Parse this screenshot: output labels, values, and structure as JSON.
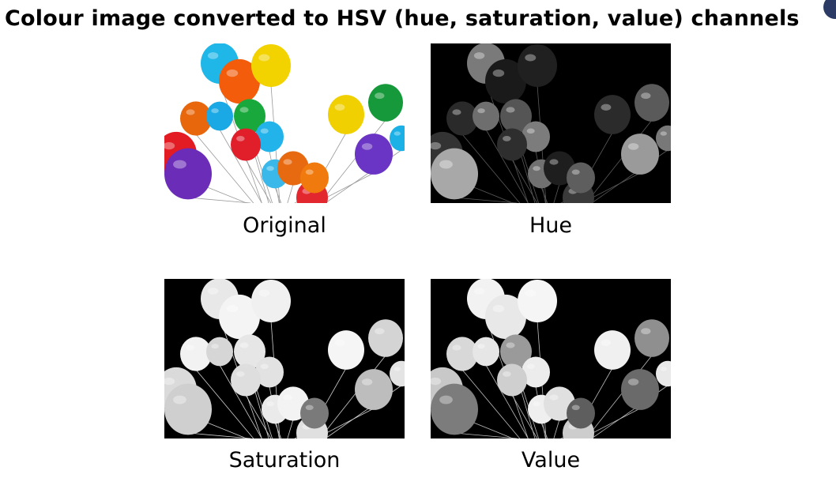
{
  "title": "Colour image converted to HSV (hue, saturation, value) channels",
  "panels": [
    {
      "key": "original",
      "caption": "Original",
      "background": "#ffffff",
      "string_color": "#9a9a9a"
    },
    {
      "key": "hue",
      "caption": "Hue",
      "background": "#000000",
      "string_color": "#5a5a5a"
    },
    {
      "key": "saturation",
      "caption": "Saturation",
      "background": "#000000",
      "string_color": "#cfcfcf"
    },
    {
      "key": "value",
      "caption": "Value",
      "background": "#000000",
      "string_color": "#bdbdbd"
    }
  ],
  "balloon_colors": {
    "original": [
      "#1fb6e8",
      "#f25c0a",
      "#f2d300",
      "#e31b23",
      "#e8660c",
      "#1aa9e5",
      "#18a83b",
      "#21b3ea",
      "#e01f2b",
      "#6b2db8",
      "#3ab8ea",
      "#f0d000",
      "#16993a",
      "#6a34c4",
      "#1bb0e6",
      "#e3272f",
      "#e86a10",
      "#f07a0d"
    ],
    "hue": [
      "#7a7a7a",
      "#1a1a1a",
      "#202020",
      "#333333",
      "#2a2a2a",
      "#6e6e6e",
      "#555555",
      "#7c7c7c",
      "#2e2e2e",
      "#a8a8a8",
      "#707070",
      "#2b2b2b",
      "#5a5a5a",
      "#9a9a9a",
      "#787878",
      "#3a3a3a",
      "#1e1e1e",
      "#5e5e5e"
    ],
    "saturation": [
      "#e8e8e8",
      "#f4f4f4",
      "#f0f0f0",
      "#dadada",
      "#f2f2f2",
      "#d6d6d6",
      "#e6e6e6",
      "#e2e2e2",
      "#dedede",
      "#cfcfcf",
      "#eaeaea",
      "#f5f5f5",
      "#d4d4d4",
      "#bdbdbd",
      "#e4e4e4",
      "#e0e0e0",
      "#f3f3f3",
      "#7a7a7a"
    ],
    "value": [
      "#f2f2f2",
      "#e8e8e8",
      "#f5f5f5",
      "#c8c8c8",
      "#d8d8d8",
      "#e6e6e6",
      "#9a9a9a",
      "#ececec",
      "#cfcfcf",
      "#7c7c7c",
      "#efefef",
      "#f0f0f0",
      "#8f8f8f",
      "#6a6a6a",
      "#e9e9e9",
      "#cdcdcd",
      "#e0e0e0",
      "#5e5e5e"
    ]
  }
}
